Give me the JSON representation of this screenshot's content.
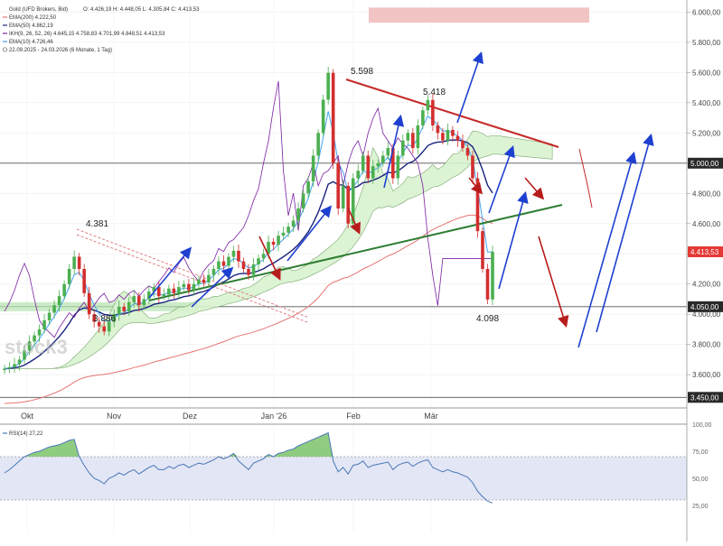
{
  "colors": {
    "candle_up": "#4caf50",
    "candle_down": "#d32f2f",
    "ema200": "#e57373",
    "ema50": "#1a237e",
    "ema10": "#42a5f5",
    "cloud_fill": "#d9f2d0",
    "rsi_line": "#4a78b8",
    "rsi_band": "#e3e6f5",
    "resistance": "#c62828",
    "support": "#2e7d32",
    "arrow_blue": "#1e40d0",
    "arrow_red": "#b71c1c",
    "price_badge": "#e53935"
  },
  "legend": {
    "title": "Gold (UFD Brokers, Bid)",
    "ohlc": "O: 4.426,19  H: 4.448,05  L: 4.305,84  C: 4.413,53",
    "ema200": "EMA(200)  4.222,50",
    "ema50": "EMA(50)  4.862,19",
    "ichimoku": "IKH(9, 26, 52, 26)  4.645,15  4.758,83  4.701,99  4.848,51  4.413,53",
    "ema10": "EMA(10)  4.726,46",
    "range": "22.09.2025 - 24.03.2026  (6 Monate, 1 Tag)"
  },
  "watermark": "stock3",
  "chart_data": [
    {
      "type": "candlestick",
      "title": "Gold (UFD Brokers, Bid)",
      "x_tick_labels": [
        "Okt",
        "Nov",
        "Dez",
        "Jan '26",
        "Feb",
        "Mär"
      ],
      "y_tick_labels": [
        "3.600,00",
        "3.800,00",
        "4.000,00",
        "4.200,00",
        "4.400,00",
        "4.600,00",
        "4.800,00",
        "5.000,00",
        "5.200,00",
        "5.400,00",
        "5.600,00",
        "5.800,00",
        "6.000,00"
      ],
      "ylim": [
        3380,
        6080
      ],
      "last_price": "4.413,53",
      "horizontal_levels": [
        {
          "value": 5000,
          "label": "5.000,00"
        },
        {
          "value": 4050,
          "label": "4.050,00"
        },
        {
          "value": 3450,
          "label": "3.450,00"
        }
      ],
      "annotations": [
        "5.598",
        "5.418",
        "4.381",
        "3.886",
        "4.098"
      ],
      "closes": [
        3640,
        3650,
        3670,
        3700,
        3760,
        3820,
        3860,
        3900,
        3960,
        4010,
        4060,
        4120,
        4200,
        4300,
        4381,
        4300,
        4140,
        4000,
        3950,
        3920,
        3886,
        3950,
        4000,
        4050,
        4020,
        4080,
        4120,
        4060,
        4100,
        4150,
        4180,
        4120,
        4130,
        4170,
        4140,
        4180,
        4200,
        4160,
        4200,
        4230,
        4210,
        4260,
        4300,
        4350,
        4320,
        4380,
        4420,
        4350,
        4300,
        4260,
        4330,
        4370,
        4400,
        4480,
        4460,
        4520,
        4540,
        4580,
        4620,
        4700,
        4800,
        4880,
        5050,
        5200,
        5420,
        5598,
        5000,
        4700,
        4850,
        4600,
        4900,
        4950,
        5050,
        4900,
        4980,
        5000,
        5050,
        5100,
        4900,
        5050,
        5150,
        5200,
        5100,
        5250,
        5350,
        5418,
        5250,
        5200,
        5150,
        5220,
        5180,
        5150,
        5100,
        5050,
        4900,
        4550,
        4300,
        4098,
        4413
      ]
    },
    {
      "type": "line",
      "title": "RSI(14)  27,22",
      "y_tick_labels": [
        "25,00",
        "50,00",
        "75,00",
        "100,00"
      ],
      "ylim": [
        0,
        100
      ],
      "bands": [
        30,
        70
      ],
      "values": [
        55,
        58,
        62,
        66,
        70,
        72,
        74,
        75,
        77,
        79,
        80,
        81,
        83,
        85,
        86,
        70,
        62,
        55,
        50,
        48,
        45,
        50,
        52,
        55,
        53,
        56,
        58,
        54,
        57,
        60,
        62,
        58,
        58,
        61,
        59,
        62,
        63,
        60,
        62,
        64,
        63,
        65,
        67,
        70,
        68,
        70,
        73,
        66,
        62,
        58,
        64,
        66,
        68,
        72,
        70,
        73,
        74,
        76,
        77,
        80,
        82,
        84,
        86,
        88,
        90,
        92,
        66,
        56,
        60,
        54,
        62,
        63,
        66,
        60,
        62,
        63,
        64,
        65,
        58,
        62,
        64,
        65,
        61,
        64,
        66,
        67,
        60,
        58,
        56,
        58,
        56,
        55,
        53,
        51,
        46,
        38,
        33,
        29,
        27.22
      ]
    }
  ]
}
